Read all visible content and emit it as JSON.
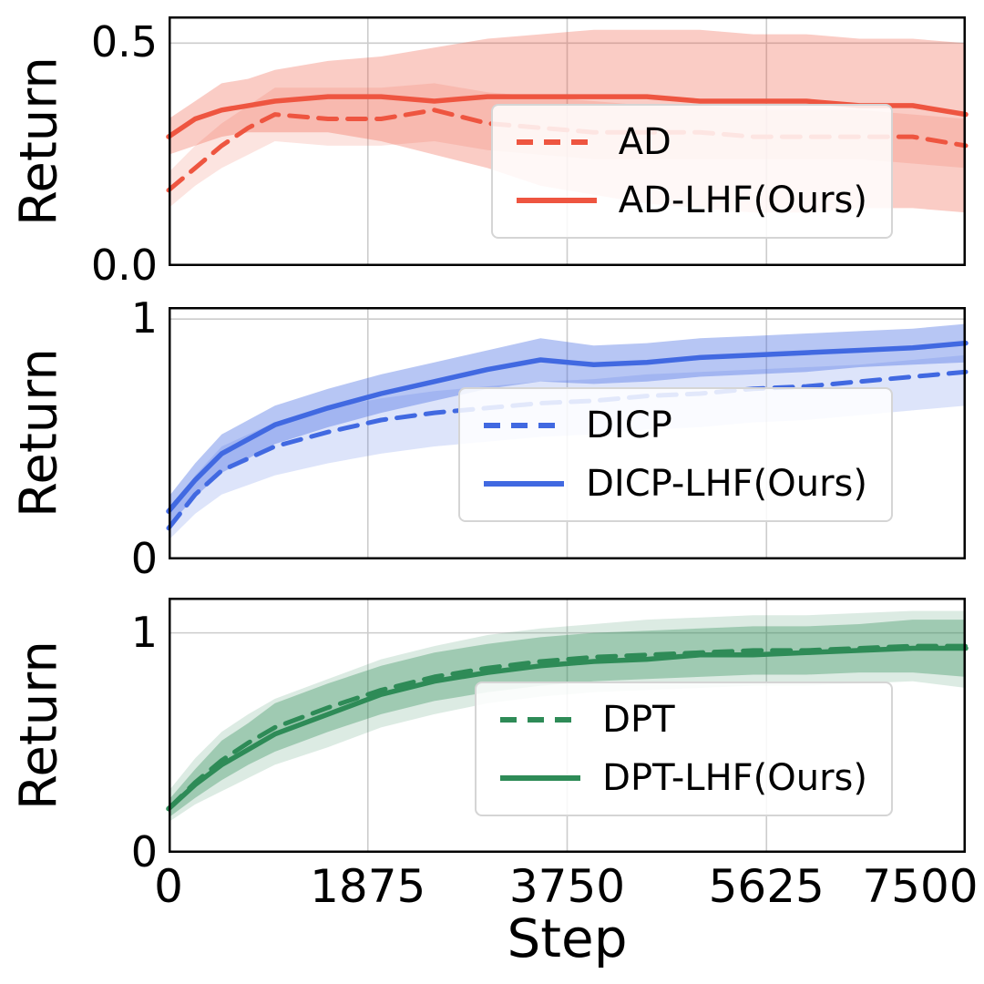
{
  "figure": {
    "xlabel": "Step",
    "x_ticks": [
      0,
      1875,
      3750,
      5625,
      7500
    ],
    "x_tick_labels": [
      "0",
      "1875",
      "3750",
      "5625",
      "7500"
    ],
    "background": "#ffffff",
    "grid_color": "#cccccc",
    "grid": true
  },
  "chart_data": [
    {
      "id": "ad",
      "type": "line",
      "ylabel": "Return",
      "xlim": [
        0,
        7500
      ],
      "ylim": [
        0,
        0.56
      ],
      "yticks": [
        0,
        0.5
      ],
      "ytick_labels": [
        "0.0",
        "0.5"
      ],
      "legend_position": "center right",
      "x": [
        0,
        250,
        500,
        750,
        1000,
        1500,
        2000,
        2500,
        3000,
        3500,
        4000,
        4500,
        5000,
        5500,
        6000,
        6500,
        7000,
        7500
      ],
      "series": [
        {
          "name": "AD",
          "style": "dashed",
          "color": "#ee5540",
          "band_opacity": 0.16,
          "values": [
            0.17,
            0.22,
            0.27,
            0.31,
            0.34,
            0.33,
            0.33,
            0.35,
            0.32,
            0.31,
            0.3,
            0.3,
            0.3,
            0.29,
            0.29,
            0.29,
            0.29,
            0.27
          ],
          "band_low": [
            0.13,
            0.18,
            0.22,
            0.25,
            0.28,
            0.27,
            0.27,
            0.28,
            0.26,
            0.25,
            0.24,
            0.24,
            0.24,
            0.24,
            0.24,
            0.24,
            0.23,
            0.22
          ],
          "band_high": [
            0.21,
            0.27,
            0.32,
            0.36,
            0.4,
            0.4,
            0.4,
            0.41,
            0.39,
            0.38,
            0.37,
            0.36,
            0.36,
            0.35,
            0.35,
            0.35,
            0.34,
            0.33
          ]
        },
        {
          "name": "AD-LHF(Ours)",
          "style": "solid",
          "color": "#ee5540",
          "band_opacity": 0.3,
          "values": [
            0.29,
            0.33,
            0.35,
            0.36,
            0.37,
            0.38,
            0.38,
            0.37,
            0.38,
            0.38,
            0.38,
            0.38,
            0.37,
            0.37,
            0.37,
            0.36,
            0.36,
            0.34
          ],
          "band_low": [
            0.25,
            0.27,
            0.29,
            0.3,
            0.3,
            0.3,
            0.28,
            0.25,
            0.22,
            0.18,
            0.16,
            0.14,
            0.13,
            0.12,
            0.12,
            0.13,
            0.13,
            0.12
          ],
          "band_high": [
            0.33,
            0.37,
            0.41,
            0.42,
            0.44,
            0.46,
            0.47,
            0.49,
            0.51,
            0.52,
            0.53,
            0.53,
            0.53,
            0.52,
            0.52,
            0.51,
            0.51,
            0.5
          ]
        }
      ]
    },
    {
      "id": "dicp",
      "type": "line",
      "ylabel": "Return",
      "xlim": [
        0,
        7500
      ],
      "ylim": [
        0,
        1.05
      ],
      "yticks": [
        0,
        1
      ],
      "ytick_labels": [
        "0",
        "1"
      ],
      "legend_position": "center right",
      "x": [
        0,
        250,
        500,
        750,
        1000,
        1500,
        2000,
        2500,
        3000,
        3500,
        4000,
        4500,
        5000,
        5500,
        6000,
        6500,
        7000,
        7500
      ],
      "series": [
        {
          "name": "DICP",
          "style": "dashed",
          "color": "#4169e1",
          "band_opacity": 0.18,
          "values": [
            0.13,
            0.27,
            0.37,
            0.42,
            0.47,
            0.53,
            0.58,
            0.61,
            0.63,
            0.65,
            0.66,
            0.68,
            0.69,
            0.71,
            0.72,
            0.74,
            0.76,
            0.78
          ],
          "band_low": [
            0.08,
            0.19,
            0.27,
            0.31,
            0.35,
            0.4,
            0.44,
            0.47,
            0.49,
            0.51,
            0.52,
            0.54,
            0.55,
            0.57,
            0.58,
            0.6,
            0.62,
            0.64
          ],
          "band_high": [
            0.18,
            0.35,
            0.47,
            0.52,
            0.57,
            0.63,
            0.67,
            0.7,
            0.72,
            0.74,
            0.75,
            0.77,
            0.78,
            0.79,
            0.8,
            0.81,
            0.83,
            0.85
          ]
        },
        {
          "name": "DICP-LHF(Ours)",
          "style": "solid",
          "color": "#4169e1",
          "band_opacity": 0.38,
          "values": [
            0.2,
            0.33,
            0.44,
            0.5,
            0.56,
            0.63,
            0.69,
            0.74,
            0.79,
            0.83,
            0.81,
            0.82,
            0.84,
            0.85,
            0.86,
            0.87,
            0.88,
            0.9
          ],
          "band_low": [
            0.14,
            0.26,
            0.36,
            0.42,
            0.48,
            0.55,
            0.61,
            0.66,
            0.71,
            0.74,
            0.73,
            0.74,
            0.76,
            0.77,
            0.78,
            0.8,
            0.81,
            0.82
          ],
          "band_high": [
            0.26,
            0.4,
            0.52,
            0.58,
            0.64,
            0.71,
            0.77,
            0.82,
            0.87,
            0.92,
            0.89,
            0.9,
            0.92,
            0.93,
            0.94,
            0.95,
            0.96,
            0.98
          ]
        }
      ]
    },
    {
      "id": "dpt",
      "type": "line",
      "ylabel": "Return",
      "xlim": [
        0,
        7500
      ],
      "ylim": [
        0,
        1.16
      ],
      "yticks": [
        0,
        1
      ],
      "ytick_labels": [
        "0",
        "1"
      ],
      "legend_position": "center right",
      "x": [
        0,
        250,
        500,
        750,
        1000,
        1500,
        2000,
        2500,
        3000,
        3500,
        4000,
        4500,
        5000,
        5500,
        6000,
        6500,
        7000,
        7500
      ],
      "series": [
        {
          "name": "DPT",
          "style": "dashed",
          "color": "#2e8b57",
          "band_opacity": 0.17,
          "values": [
            0.2,
            0.32,
            0.42,
            0.5,
            0.57,
            0.66,
            0.74,
            0.8,
            0.84,
            0.87,
            0.89,
            0.9,
            0.91,
            0.92,
            0.92,
            0.93,
            0.94,
            0.94
          ],
          "band_low": [
            0.14,
            0.22,
            0.28,
            0.34,
            0.4,
            0.48,
            0.57,
            0.63,
            0.68,
            0.71,
            0.73,
            0.74,
            0.75,
            0.76,
            0.76,
            0.77,
            0.78,
            0.75
          ],
          "band_high": [
            0.28,
            0.43,
            0.55,
            0.63,
            0.7,
            0.79,
            0.88,
            0.94,
            0.99,
            1.02,
            1.04,
            1.06,
            1.07,
            1.08,
            1.08,
            1.09,
            1.1,
            1.1
          ]
        },
        {
          "name": "DPT-LHF(Ours)",
          "style": "solid",
          "color": "#2e8b57",
          "band_opacity": 0.35,
          "values": [
            0.2,
            0.31,
            0.4,
            0.47,
            0.54,
            0.63,
            0.72,
            0.78,
            0.82,
            0.85,
            0.87,
            0.88,
            0.9,
            0.9,
            0.91,
            0.92,
            0.93,
            0.93
          ],
          "band_low": [
            0.16,
            0.25,
            0.33,
            0.4,
            0.46,
            0.55,
            0.63,
            0.69,
            0.73,
            0.76,
            0.78,
            0.79,
            0.8,
            0.81,
            0.81,
            0.82,
            0.82,
            0.8
          ],
          "band_high": [
            0.24,
            0.38,
            0.51,
            0.59,
            0.68,
            0.77,
            0.85,
            0.91,
            0.95,
            0.98,
            1.0,
            1.01,
            1.02,
            1.03,
            1.03,
            1.04,
            1.06,
            1.06
          ]
        }
      ]
    }
  ]
}
